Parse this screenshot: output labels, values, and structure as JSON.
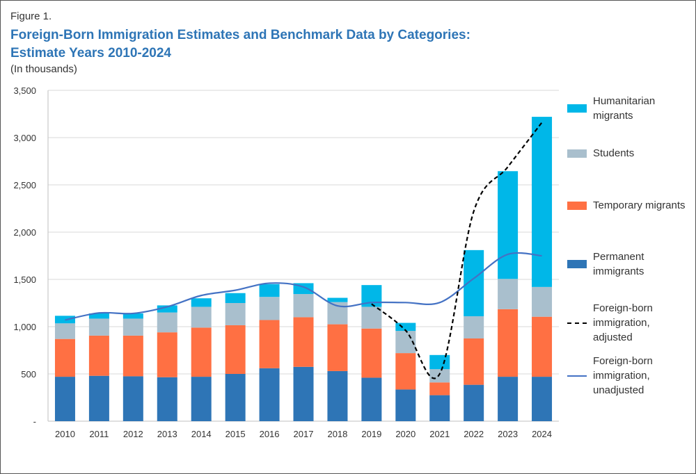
{
  "figure_label": "Figure 1.",
  "title_line1": "Foreign-Born Immigration Estimates and Benchmark Data by Categories:",
  "title_line2": "Estimate Years 2010-2024",
  "subtitle": "(In thousands)",
  "colors": {
    "permanent": "#2e75b6",
    "temporary": "#ff7043",
    "students": "#a9bfcd",
    "humanitarian": "#00b7e8",
    "adjusted": "#000000",
    "unadjusted": "#4472c4",
    "title": "#2e75b6"
  },
  "legend": [
    {
      "key": "humanitarian",
      "label": "Humanitarian\nmigrants",
      "kind": "bar"
    },
    {
      "key": "students",
      "label": "Students",
      "kind": "bar"
    },
    {
      "key": "temporary",
      "label": "Temporary migrants",
      "kind": "bar"
    },
    {
      "key": "permanent",
      "label": "Permanent\nimmigrants",
      "kind": "bar"
    },
    {
      "key": "adjusted",
      "label": "Foreign-born\nimmigration,\nadjusted",
      "kind": "dashed"
    },
    {
      "key": "unadjusted",
      "label": "Foreign-born\nimmigration,\nunadjusted",
      "kind": "line"
    }
  ],
  "chart_data": {
    "type": "bar",
    "stacked": true,
    "categories": [
      "2010",
      "2011",
      "2012",
      "2013",
      "2014",
      "2015",
      "2016",
      "2017",
      "2018",
      "2019",
      "2020",
      "2021",
      "2022",
      "2023",
      "2024"
    ],
    "series": [
      {
        "name": "Permanent immigrants",
        "key": "permanent",
        "values": [
          470,
          480,
          475,
          465,
          470,
          500,
          560,
          575,
          530,
          460,
          335,
          275,
          385,
          470,
          470
        ]
      },
      {
        "name": "Temporary migrants",
        "key": "temporary",
        "values": [
          400,
          425,
          430,
          475,
          520,
          515,
          510,
          525,
          495,
          520,
          385,
          135,
          490,
          715,
          635
        ]
      },
      {
        "name": "Students",
        "key": "students",
        "values": [
          165,
          180,
          180,
          210,
          220,
          235,
          245,
          245,
          235,
          230,
          235,
          140,
          235,
          320,
          315
        ]
      },
      {
        "name": "Humanitarian migrants",
        "key": "humanitarian",
        "values": [
          80,
          55,
          55,
          75,
          90,
          105,
          135,
          115,
          45,
          230,
          85,
          150,
          700,
          1140,
          1800
        ]
      }
    ],
    "lines": [
      {
        "name": "Foreign-born immigration, unadjusted",
        "key": "unadjusted",
        "style": "solid",
        "values": [
          1070,
          1145,
          1140,
          1210,
          1330,
          1385,
          1460,
          1420,
          1220,
          1255,
          1255,
          1255,
          1510,
          1765,
          1750
        ]
      },
      {
        "name": "Foreign-born immigration, adjusted",
        "key": "adjusted",
        "style": "dashed",
        "values": [
          null,
          null,
          null,
          null,
          null,
          null,
          null,
          null,
          null,
          1240,
          960,
          500,
          2220,
          2690,
          3160
        ]
      }
    ],
    "ylim": [
      0,
      3500
    ],
    "yticks": [
      0,
      500,
      1000,
      1500,
      2000,
      2500,
      3000,
      3500
    ],
    "ytick_labels": [
      "-",
      "500",
      "1,000",
      "1,500",
      "2,000",
      "2,500",
      "3,000",
      "3,500"
    ],
    "title": "Foreign-Born Immigration Estimates and Benchmark Data by Categories: Estimate Years 2010-2024",
    "ylabel": "In thousands",
    "grid": true,
    "legend_position": "right"
  }
}
